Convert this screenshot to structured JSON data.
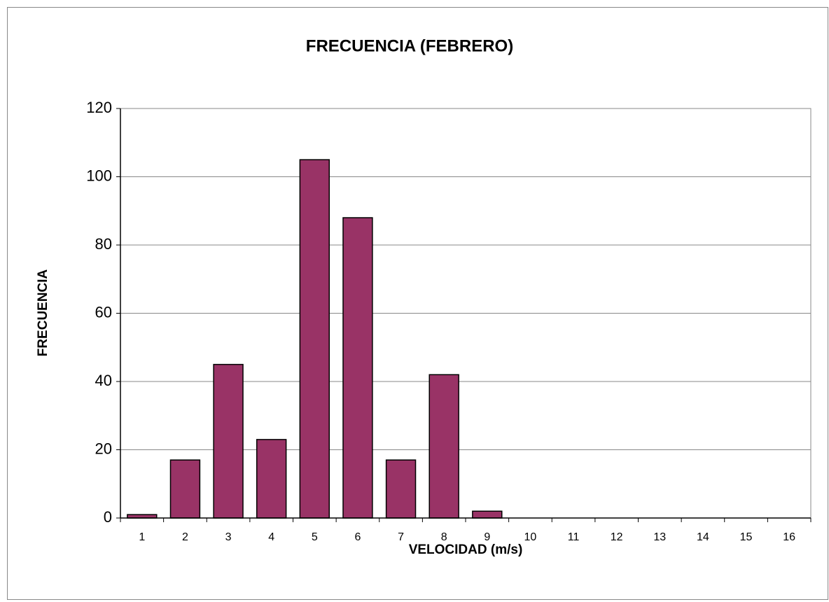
{
  "chart_data": {
    "type": "bar",
    "title": "FRECUENCIA (FEBRERO)",
    "x_label": "VELOCIDAD (m/s)",
    "y_label": "FRECUENCIA",
    "categories": [
      "1",
      "2",
      "3",
      "4",
      "5",
      "6",
      "7",
      "8",
      "9",
      "10",
      "11",
      "12",
      "13",
      "14",
      "15",
      "16"
    ],
    "values": [
      1,
      17,
      45,
      23,
      105,
      88,
      17,
      42,
      2,
      0,
      0,
      0,
      0,
      0,
      0,
      0
    ],
    "color": "#993366",
    "ylim": [
      0,
      120
    ],
    "yticks": [
      0,
      20,
      40,
      60,
      80,
      100,
      120
    ],
    "grid": true
  }
}
